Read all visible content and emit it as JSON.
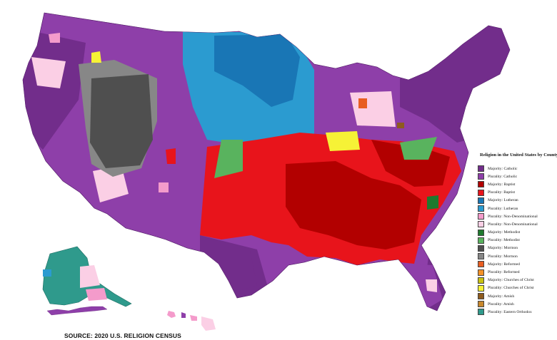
{
  "legend": {
    "title": "Religion in the United States by County",
    "items": [
      {
        "label": "Majority: Catholic",
        "color": "#722d8b"
      },
      {
        "label": "Plurality: Catholic",
        "color": "#8e3fa9"
      },
      {
        "label": "Majority: Baptist",
        "color": "#b20000"
      },
      {
        "label": "Plurality: Baptist",
        "color": "#e8141b"
      },
      {
        "label": "Majority: Lutheran",
        "color": "#1976b5"
      },
      {
        "label": "Plurality: Lutheran",
        "color": "#2b9bd0"
      },
      {
        "label": "Plurality: Non-Denominational",
        "color": "#f49bcb"
      },
      {
        "label": "Plurality: Non-Denominational",
        "color": "#fbcfe5"
      },
      {
        "label": "Majority: Methodist",
        "color": "#1e7a2e"
      },
      {
        "label": "Plurality: Methodist",
        "color": "#59b35e"
      },
      {
        "label": "Majority: Mormon",
        "color": "#4f4f4f"
      },
      {
        "label": "Plurality: Mormon",
        "color": "#878787"
      },
      {
        "label": "Majority: Reformed",
        "color": "#e85e22"
      },
      {
        "label": "Plurality: Reformed",
        "color": "#f49127"
      },
      {
        "label": "Majority: Churches of Christ",
        "color": "#c9c211"
      },
      {
        "label": "Plurality: Churches of Christ",
        "color": "#f6f236"
      },
      {
        "label": "Majority: Amish",
        "color": "#8e5b1e"
      },
      {
        "label": "Plurality: Amish",
        "color": "#c8872c"
      },
      {
        "label": "Plurality: Eastern Orthodox",
        "color": "#2f9a8c"
      }
    ]
  },
  "source": "SOURCE: 2020 U.S. RELIGION CENSUS"
}
